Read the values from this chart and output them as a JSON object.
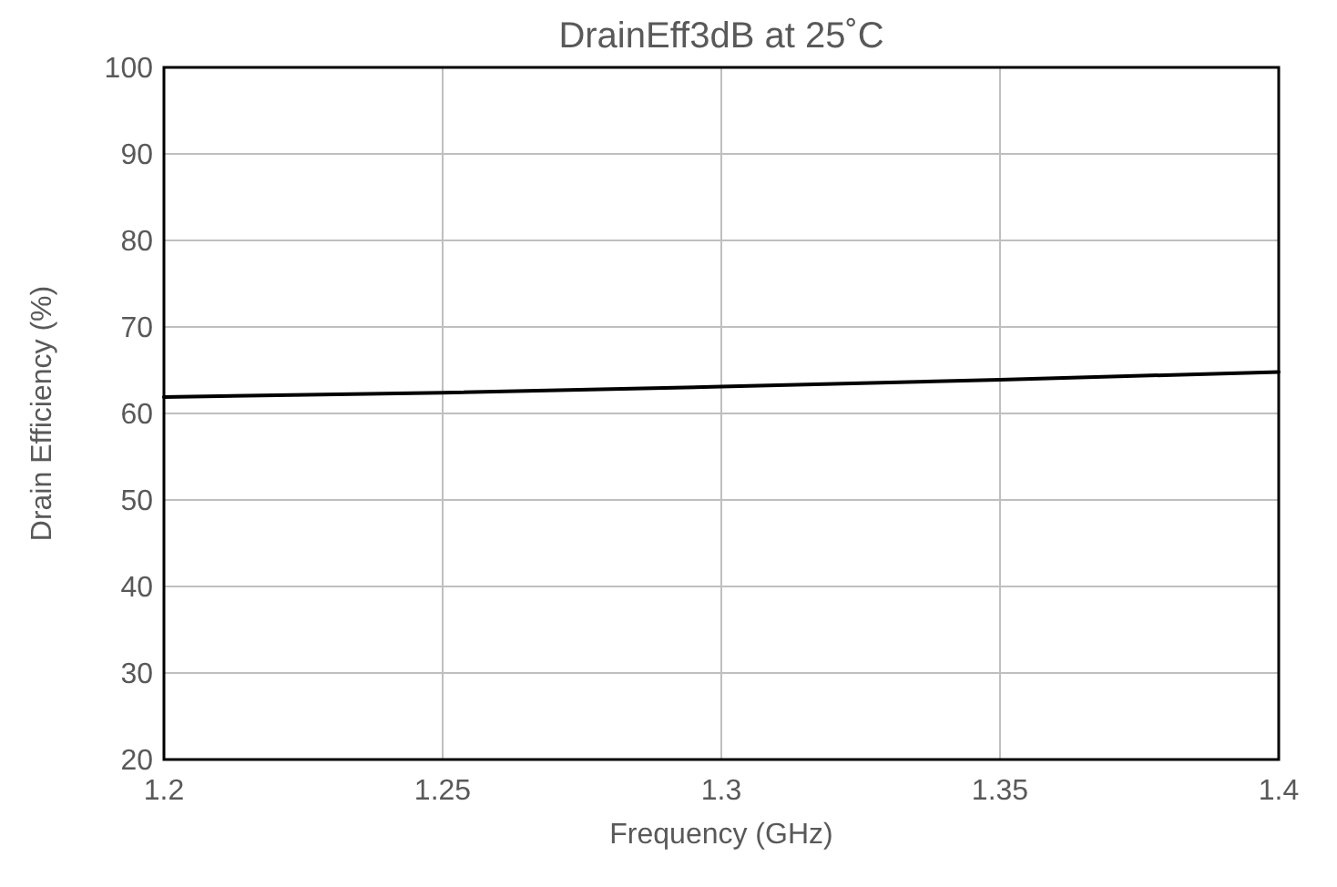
{
  "chart_data": {
    "type": "line",
    "title": "DrainEff3dB at 25˚C",
    "xlabel": "Frequency (GHz)",
    "ylabel": "Drain Efficiency (%)",
    "x": [
      1.2,
      1.25,
      1.3,
      1.35,
      1.4
    ],
    "series": [
      {
        "color": "#000000",
        "values": [
          61.9,
          62.4,
          63.1,
          63.9,
          64.8
        ]
      }
    ],
    "xlim": [
      1.2,
      1.4
    ],
    "xticks": [
      1.2,
      1.25,
      1.3,
      1.35,
      1.4
    ],
    "ylim": [
      20,
      100
    ],
    "yticks": [
      20,
      30,
      40,
      50,
      60,
      70,
      80,
      90,
      100
    ],
    "grid": true,
    "marker": "none",
    "line_style": "solid"
  }
}
